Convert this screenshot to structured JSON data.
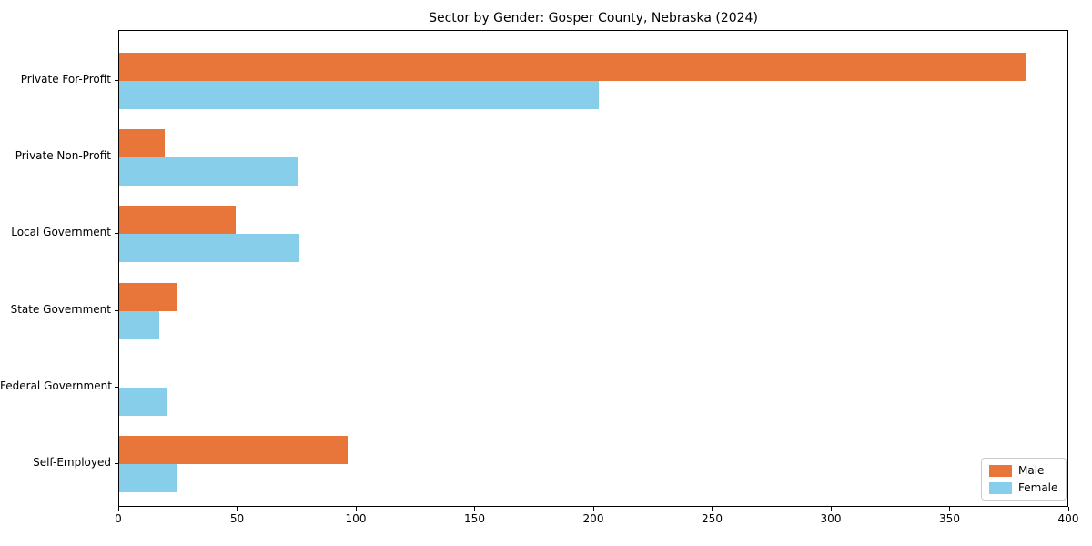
{
  "chart_data": {
    "type": "bar",
    "orientation": "horizontal",
    "title": "Sector by Gender: Gosper County, Nebraska (2024)",
    "categories": [
      "Private For-Profit",
      "Private Non-Profit",
      "Local Government",
      "State Government",
      "Federal Government",
      "Self-Employed"
    ],
    "series": [
      {
        "name": "Male",
        "color": "#e8763b",
        "values": [
          382,
          19,
          49,
          24,
          0,
          96
        ]
      },
      {
        "name": "Female",
        "color": "#87ceeb",
        "values": [
          202,
          75,
          76,
          17,
          20,
          24
        ]
      }
    ],
    "xlabel": "",
    "ylabel": "",
    "xlim": [
      0,
      400
    ],
    "x_ticks": [
      0,
      50,
      100,
      150,
      200,
      250,
      300,
      350,
      400
    ],
    "grid": false,
    "legend_position": "lower right"
  }
}
